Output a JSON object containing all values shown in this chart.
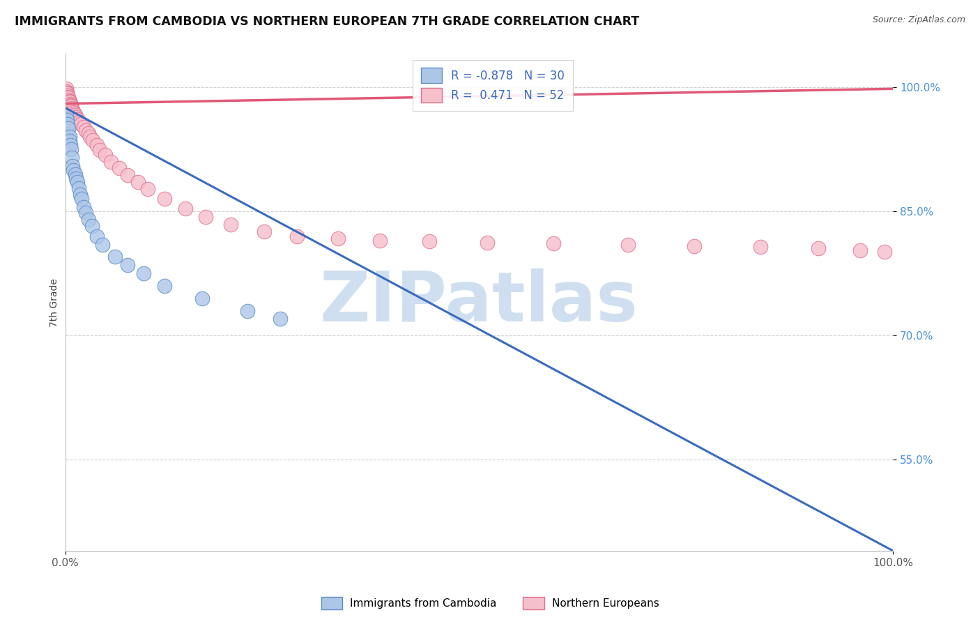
{
  "title": "IMMIGRANTS FROM CAMBODIA VS NORTHERN EUROPEAN 7TH GRADE CORRELATION CHART",
  "source": "Source: ZipAtlas.com",
  "ylabel": "7th Grade",
  "watermark": "ZIPatlas",
  "blue_label": "Immigrants from Cambodia",
  "pink_label": "Northern Europeans",
  "blue_R": -0.878,
  "blue_N": 30,
  "pink_R": 0.471,
  "pink_N": 52,
  "blue_color": "#adc6e8",
  "blue_edge_color": "#5b8ec7",
  "blue_line_color": "#3a6bbf",
  "pink_color": "#f5bfcc",
  "pink_edge_color": "#e07090",
  "pink_line_color": "#e05878",
  "blue_scatter_x": [
    0.001,
    0.002,
    0.003,
    0.004,
    0.005,
    0.005,
    0.006,
    0.007,
    0.008,
    0.009,
    0.01,
    0.012,
    0.013,
    0.015,
    0.016,
    0.018,
    0.02,
    0.022,
    0.025,
    0.028,
    0.032,
    0.038,
    0.045,
    0.06,
    0.075,
    0.095,
    0.12,
    0.165,
    0.22,
    0.26
  ],
  "blue_scatter_y": [
    0.965,
    0.96,
    0.955,
    0.95,
    0.94,
    0.935,
    0.93,
    0.925,
    0.915,
    0.905,
    0.9,
    0.895,
    0.89,
    0.885,
    0.878,
    0.87,
    0.865,
    0.855,
    0.848,
    0.84,
    0.832,
    0.82,
    0.81,
    0.795,
    0.785,
    0.775,
    0.76,
    0.745,
    0.73,
    0.72
  ],
  "pink_scatter_x": [
    0.001,
    0.001,
    0.002,
    0.002,
    0.003,
    0.003,
    0.004,
    0.004,
    0.005,
    0.005,
    0.006,
    0.006,
    0.007,
    0.008,
    0.009,
    0.01,
    0.011,
    0.012,
    0.013,
    0.015,
    0.017,
    0.019,
    0.022,
    0.025,
    0.028,
    0.03,
    0.033,
    0.038,
    0.042,
    0.048,
    0.055,
    0.065,
    0.075,
    0.088,
    0.1,
    0.12,
    0.145,
    0.17,
    0.2,
    0.24,
    0.28,
    0.33,
    0.38,
    0.44,
    0.51,
    0.59,
    0.68,
    0.76,
    0.84,
    0.91,
    0.96,
    0.99
  ],
  "pink_scatter_y": [
    0.998,
    0.995,
    0.993,
    0.992,
    0.99,
    0.988,
    0.987,
    0.985,
    0.983,
    0.982,
    0.98,
    0.978,
    0.977,
    0.975,
    0.972,
    0.97,
    0.968,
    0.966,
    0.964,
    0.961,
    0.958,
    0.955,
    0.952,
    0.948,
    0.944,
    0.94,
    0.936,
    0.93,
    0.924,
    0.918,
    0.91,
    0.902,
    0.894,
    0.885,
    0.877,
    0.865,
    0.853,
    0.843,
    0.834,
    0.826,
    0.82,
    0.817,
    0.815,
    0.814,
    0.812,
    0.811,
    0.81,
    0.808,
    0.807,
    0.805,
    0.803,
    0.801
  ],
  "blue_line_x0": 0.0,
  "blue_line_y0": 0.975,
  "blue_line_x1": 1.0,
  "blue_line_y1": 0.44,
  "pink_line_x0": 0.0,
  "pink_line_y0": 0.98,
  "pink_line_x1": 1.0,
  "pink_line_y1": 0.998,
  "xlim": [
    0.0,
    1.0
  ],
  "ylim": [
    0.44,
    1.04
  ],
  "yticks": [
    0.55,
    0.7,
    0.85,
    1.0
  ],
  "ytick_labels": [
    "55.0%",
    "70.0%",
    "85.0%",
    "100.0%"
  ],
  "xtick_labels": [
    "0.0%",
    "100.0%"
  ],
  "background_color": "#ffffff",
  "grid_color": "#cccccc",
  "title_fontsize": 12.5,
  "watermark_color": "#d0dff0",
  "watermark_fontsize": 72
}
